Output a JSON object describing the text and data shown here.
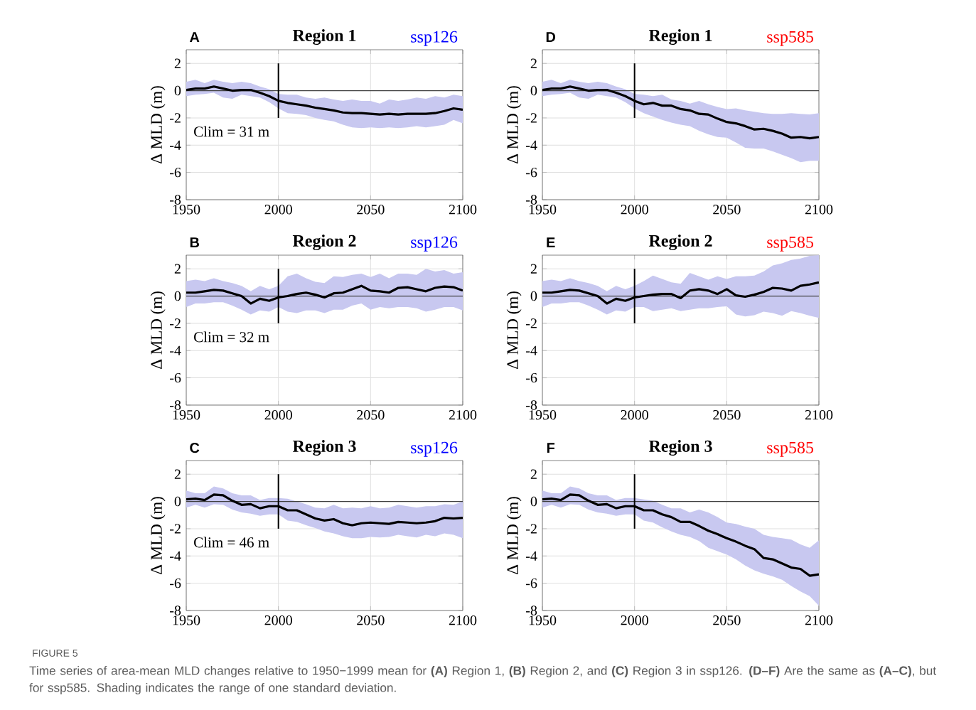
{
  "chart_data": [
    {
      "type": "line",
      "title": "Region 1",
      "subtitle": "ssp126",
      "ylabel": "Δ MLD (m)",
      "annotations": [
        "A",
        "Clim = 31 m"
      ],
      "xlim": [
        1950,
        2100
      ],
      "ylim": [
        -8,
        3
      ],
      "xticks": [
        1950,
        2000,
        2050,
        2100
      ],
      "yticks": [
        -8,
        -6,
        -4,
        -2,
        0,
        2
      ],
      "grid": true,
      "ref_lines": [
        {
          "axis": "y",
          "value": 0,
          "color": "#404040"
        },
        {
          "axis": "x",
          "value": 2000,
          "color": "#000000"
        }
      ],
      "x": [
        1950,
        1955,
        1960,
        1965,
        1970,
        1975,
        1980,
        1985,
        1990,
        1995,
        2000,
        2005,
        2010,
        2015,
        2020,
        2025,
        2030,
        2035,
        2040,
        2045,
        2050,
        2055,
        2060,
        2065,
        2070,
        2075,
        2080,
        2085,
        2090,
        2095,
        2100
      ],
      "series": [
        {
          "color": "#000000",
          "values": [
            0.05,
            0.15,
            0.15,
            0.3,
            0.15,
            0.0,
            0.05,
            0.05,
            -0.15,
            -0.4,
            -0.75,
            -0.9,
            -1.0,
            -1.1,
            -1.25,
            -1.35,
            -1.45,
            -1.6,
            -1.65,
            -1.65,
            -1.7,
            -1.75,
            -1.7,
            -1.75,
            -1.7,
            -1.7,
            -1.7,
            -1.65,
            -1.5,
            -1.3,
            -1.4
          ],
          "upper": [
            0.65,
            0.8,
            0.55,
            0.8,
            0.65,
            0.55,
            0.65,
            0.55,
            0.3,
            0.1,
            -0.25,
            -0.3,
            -0.3,
            -0.5,
            -0.6,
            -0.5,
            -0.65,
            -0.75,
            -0.65,
            -0.75,
            -0.75,
            -0.95,
            -0.65,
            -0.75,
            -0.65,
            -0.5,
            -0.6,
            -0.4,
            -0.5,
            -0.3,
            -0.4
          ],
          "lower": [
            -0.4,
            -0.3,
            -0.25,
            -0.15,
            -0.5,
            -0.6,
            -0.3,
            -0.4,
            -0.5,
            -0.85,
            -1.3,
            -1.65,
            -1.7,
            -1.8,
            -2.0,
            -2.15,
            -2.25,
            -2.5,
            -2.7,
            -2.75,
            -2.7,
            -2.75,
            -2.7,
            -2.75,
            -2.7,
            -2.6,
            -2.7,
            -2.6,
            -2.5,
            -2.15,
            -2.4
          ]
        }
      ]
    },
    {
      "type": "line",
      "title": "Region 1",
      "subtitle": "ssp585",
      "ylabel": "Δ MLD (m)",
      "annotations": [
        "D"
      ],
      "xlim": [
        1950,
        2100
      ],
      "ylim": [
        -8,
        3
      ],
      "xticks": [
        1950,
        2000,
        2050,
        2100
      ],
      "yticks": [
        -8,
        -6,
        -4,
        -2,
        0,
        2
      ],
      "grid": true,
      "ref_lines": [
        {
          "axis": "y",
          "value": 0,
          "color": "#404040"
        },
        {
          "axis": "x",
          "value": 2000,
          "color": "#000000"
        }
      ],
      "x": [
        1950,
        1955,
        1960,
        1965,
        1970,
        1975,
        1980,
        1985,
        1990,
        1995,
        2000,
        2005,
        2010,
        2015,
        2020,
        2025,
        2030,
        2035,
        2040,
        2045,
        2050,
        2055,
        2060,
        2065,
        2070,
        2075,
        2080,
        2085,
        2090,
        2095,
        2100
      ],
      "series": [
        {
          "color": "#000000",
          "values": [
            0.05,
            0.15,
            0.15,
            0.3,
            0.15,
            0.0,
            0.05,
            0.05,
            -0.15,
            -0.4,
            -0.75,
            -1.0,
            -0.9,
            -1.1,
            -1.1,
            -1.35,
            -1.45,
            -1.7,
            -1.75,
            -2.05,
            -2.3,
            -2.4,
            -2.6,
            -2.85,
            -2.8,
            -2.95,
            -3.15,
            -3.45,
            -3.4,
            -3.5,
            -3.4
          ],
          "upper": [
            0.65,
            0.8,
            0.55,
            0.8,
            0.65,
            0.55,
            0.65,
            0.55,
            0.3,
            0.1,
            -0.25,
            -0.3,
            -0.4,
            -0.3,
            -0.65,
            -0.75,
            -0.95,
            -0.75,
            -1.0,
            -1.2,
            -1.35,
            -1.3,
            -1.45,
            -1.55,
            -1.65,
            -1.7,
            -1.7,
            -1.65,
            -1.7,
            -1.75,
            -1.65
          ],
          "lower": [
            -0.4,
            -0.3,
            -0.25,
            -0.15,
            -0.5,
            -0.6,
            -0.3,
            -0.4,
            -0.5,
            -0.85,
            -1.3,
            -1.65,
            -1.9,
            -2.15,
            -2.35,
            -2.5,
            -2.6,
            -2.95,
            -3.2,
            -3.4,
            -3.45,
            -3.8,
            -4.2,
            -4.25,
            -4.25,
            -4.45,
            -4.7,
            -4.95,
            -5.25,
            -5.15,
            -5.15
          ]
        }
      ]
    },
    {
      "type": "line",
      "title": "Region 2",
      "subtitle": "ssp126",
      "ylabel": "Δ MLD (m)",
      "annotations": [
        "B",
        "Clim = 32 m"
      ],
      "xlim": [
        1950,
        2100
      ],
      "ylim": [
        -8,
        3
      ],
      "xticks": [
        1950,
        2000,
        2050,
        2100
      ],
      "yticks": [
        -8,
        -6,
        -4,
        -2,
        0,
        2
      ],
      "grid": true,
      "ref_lines": [
        {
          "axis": "y",
          "value": 0,
          "color": "#404040"
        },
        {
          "axis": "x",
          "value": 2000,
          "color": "#000000"
        }
      ],
      "x": [
        1950,
        1955,
        1960,
        1965,
        1970,
        1975,
        1980,
        1985,
        1990,
        1995,
        2000,
        2005,
        2010,
        2015,
        2020,
        2025,
        2030,
        2035,
        2040,
        2045,
        2050,
        2055,
        2060,
        2065,
        2070,
        2075,
        2080,
        2085,
        2090,
        2095,
        2100
      ],
      "series": [
        {
          "color": "#000000",
          "values": [
            0.25,
            0.25,
            0.35,
            0.45,
            0.4,
            0.2,
            0.0,
            -0.55,
            -0.2,
            -0.35,
            -0.1,
            0.0,
            0.15,
            0.25,
            0.1,
            -0.1,
            0.2,
            0.25,
            0.5,
            0.75,
            0.4,
            0.35,
            0.25,
            0.6,
            0.65,
            0.5,
            0.35,
            0.6,
            0.7,
            0.65,
            0.4
          ],
          "upper": [
            1.1,
            1.2,
            1.1,
            1.3,
            1.1,
            0.95,
            0.75,
            0.35,
            0.75,
            0.5,
            0.75,
            1.45,
            1.65,
            1.3,
            1.05,
            0.95,
            1.45,
            1.4,
            1.55,
            1.65,
            1.4,
            1.65,
            1.3,
            1.65,
            1.65,
            1.55,
            2.0,
            1.8,
            1.9,
            1.65,
            1.75
          ],
          "lower": [
            -0.8,
            -0.55,
            -0.55,
            -0.45,
            -0.45,
            -0.7,
            -1.0,
            -1.35,
            -1.05,
            -1.15,
            -0.8,
            -1.15,
            -1.25,
            -1.05,
            -1.05,
            -1.25,
            -1.0,
            -1.0,
            -0.7,
            -0.55,
            -1.0,
            -0.8,
            -0.9,
            -0.8,
            -0.8,
            -0.9,
            -1.15,
            -1.0,
            -0.8,
            -0.8,
            -1.05
          ]
        }
      ]
    },
    {
      "type": "line",
      "title": "Region 2",
      "subtitle": "ssp585",
      "ylabel": "Δ MLD (m)",
      "annotations": [
        "E"
      ],
      "xlim": [
        1950,
        2100
      ],
      "ylim": [
        -8,
        3
      ],
      "xticks": [
        1950,
        2000,
        2050,
        2100
      ],
      "yticks": [
        -8,
        -6,
        -4,
        -2,
        0,
        2
      ],
      "grid": true,
      "ref_lines": [
        {
          "axis": "y",
          "value": 0,
          "color": "#404040"
        },
        {
          "axis": "x",
          "value": 2000,
          "color": "#000000"
        }
      ],
      "x": [
        1950,
        1955,
        1960,
        1965,
        1970,
        1975,
        1980,
        1985,
        1990,
        1995,
        2000,
        2005,
        2010,
        2015,
        2020,
        2025,
        2030,
        2035,
        2040,
        2045,
        2050,
        2055,
        2060,
        2065,
        2070,
        2075,
        2080,
        2085,
        2090,
        2095,
        2100
      ],
      "series": [
        {
          "color": "#000000",
          "values": [
            0.25,
            0.25,
            0.35,
            0.45,
            0.4,
            0.2,
            0.0,
            -0.55,
            -0.2,
            -0.35,
            -0.1,
            0.0,
            0.1,
            0.15,
            0.15,
            -0.15,
            0.4,
            0.5,
            0.4,
            0.15,
            0.5,
            0.05,
            -0.05,
            0.1,
            0.3,
            0.6,
            0.55,
            0.4,
            0.75,
            0.85,
            1.0
          ],
          "upper": [
            1.1,
            1.2,
            1.1,
            1.3,
            1.1,
            0.95,
            0.75,
            0.35,
            0.75,
            0.5,
            0.75,
            1.1,
            1.5,
            1.25,
            1.0,
            0.9,
            1.7,
            1.45,
            1.2,
            1.45,
            1.25,
            1.45,
            1.45,
            1.5,
            1.8,
            2.25,
            2.4,
            2.65,
            2.75,
            2.95,
            3.0
          ],
          "lower": [
            -0.8,
            -0.55,
            -0.55,
            -0.45,
            -0.45,
            -0.7,
            -1.0,
            -1.35,
            -1.05,
            -1.15,
            -0.8,
            -0.8,
            -1.1,
            -1.0,
            -0.9,
            -1.1,
            -1.0,
            -0.9,
            -0.9,
            -0.8,
            -0.75,
            -1.35,
            -1.5,
            -1.4,
            -1.15,
            -1.25,
            -1.45,
            -1.1,
            -1.25,
            -1.45,
            -1.6
          ]
        }
      ]
    },
    {
      "type": "line",
      "title": "Region 3",
      "subtitle": "ssp126",
      "ylabel": "Δ MLD (m)",
      "annotations": [
        "C",
        "Clim = 46 m"
      ],
      "xlim": [
        1950,
        2100
      ],
      "ylim": [
        -8,
        3
      ],
      "xticks": [
        1950,
        2000,
        2050,
        2100
      ],
      "yticks": [
        -8,
        -6,
        -4,
        -2,
        0,
        2
      ],
      "grid": true,
      "ref_lines": [
        {
          "axis": "y",
          "value": 0,
          "color": "#404040"
        },
        {
          "axis": "x",
          "value": 2000,
          "color": "#000000"
        }
      ],
      "x": [
        1950,
        1955,
        1960,
        1965,
        1970,
        1975,
        1980,
        1985,
        1990,
        1995,
        2000,
        2005,
        2010,
        2015,
        2020,
        2025,
        2030,
        2035,
        2040,
        2045,
        2050,
        2055,
        2060,
        2065,
        2070,
        2075,
        2080,
        2085,
        2090,
        2095,
        2100
      ],
      "series": [
        {
          "color": "#000000",
          "values": [
            0.15,
            0.2,
            0.1,
            0.5,
            0.45,
            0.05,
            -0.25,
            -0.2,
            -0.5,
            -0.35,
            -0.35,
            -0.65,
            -0.65,
            -0.95,
            -1.25,
            -1.4,
            -1.3,
            -1.6,
            -1.75,
            -1.6,
            -1.55,
            -1.6,
            -1.65,
            -1.5,
            -1.55,
            -1.6,
            -1.55,
            -1.45,
            -1.2,
            -1.25,
            -1.2
          ],
          "upper": [
            0.8,
            0.6,
            0.6,
            1.1,
            0.95,
            0.6,
            0.45,
            0.45,
            0.1,
            0.25,
            0.25,
            0.2,
            0.0,
            -0.2,
            -0.45,
            -0.5,
            -0.25,
            -0.5,
            -0.45,
            -0.5,
            -0.35,
            -0.5,
            -0.45,
            -0.25,
            -0.35,
            -0.45,
            -0.35,
            -0.35,
            -0.2,
            -0.25,
            0.0
          ],
          "lower": [
            -0.45,
            -0.25,
            -0.45,
            -0.2,
            -0.25,
            -0.6,
            -0.8,
            -0.9,
            -1.05,
            -0.95,
            -0.95,
            -1.4,
            -1.5,
            -1.75,
            -1.95,
            -2.2,
            -2.35,
            -2.55,
            -2.7,
            -2.7,
            -2.6,
            -2.65,
            -2.6,
            -2.45,
            -2.55,
            -2.65,
            -2.45,
            -2.55,
            -2.35,
            -2.45,
            -2.7
          ]
        }
      ]
    },
    {
      "type": "line",
      "title": "Region 3",
      "subtitle": "ssp585",
      "ylabel": "Δ MLD (m)",
      "annotations": [
        "F"
      ],
      "xlim": [
        1950,
        2100
      ],
      "ylim": [
        -8,
        3
      ],
      "xticks": [
        1950,
        2000,
        2050,
        2100
      ],
      "yticks": [
        -8,
        -6,
        -4,
        -2,
        0,
        2
      ],
      "grid": true,
      "ref_lines": [
        {
          "axis": "y",
          "value": 0,
          "color": "#404040"
        },
        {
          "axis": "x",
          "value": 2000,
          "color": "#000000"
        }
      ],
      "x": [
        1950,
        1955,
        1960,
        1965,
        1970,
        1975,
        1980,
        1985,
        1990,
        1995,
        2000,
        2005,
        2010,
        2015,
        2020,
        2025,
        2030,
        2035,
        2040,
        2045,
        2050,
        2055,
        2060,
        2065,
        2070,
        2075,
        2080,
        2085,
        2090,
        2095,
        2100
      ],
      "series": [
        {
          "color": "#000000",
          "values": [
            0.15,
            0.2,
            0.1,
            0.5,
            0.45,
            0.05,
            -0.25,
            -0.2,
            -0.5,
            -0.35,
            -0.35,
            -0.65,
            -0.65,
            -0.95,
            -1.15,
            -1.5,
            -1.5,
            -1.8,
            -2.15,
            -2.4,
            -2.7,
            -2.95,
            -3.25,
            -3.5,
            -4.15,
            -4.25,
            -4.55,
            -4.85,
            -4.95,
            -5.45,
            -5.35
          ],
          "upper": [
            0.8,
            0.6,
            0.6,
            1.1,
            0.95,
            0.6,
            0.45,
            0.45,
            0.1,
            0.25,
            0.25,
            0.15,
            0.05,
            -0.25,
            -0.5,
            -0.5,
            -0.8,
            -0.6,
            -0.8,
            -1.15,
            -1.55,
            -1.65,
            -1.85,
            -2.0,
            -2.45,
            -2.6,
            -2.7,
            -2.8,
            -3.15,
            -3.4,
            -2.85
          ],
          "lower": [
            -0.45,
            -0.25,
            -0.45,
            -0.2,
            -0.25,
            -0.6,
            -0.8,
            -0.9,
            -1.05,
            -0.95,
            -0.95,
            -1.4,
            -1.55,
            -1.9,
            -2.2,
            -2.45,
            -2.6,
            -2.9,
            -3.4,
            -3.65,
            -3.9,
            -4.25,
            -4.7,
            -5.05,
            -5.3,
            -5.5,
            -5.75,
            -6.2,
            -6.6,
            -6.95,
            -7.65
          ]
        }
      ]
    },
    {
      "type": "other",
      "title": "FIGURE 5",
      "annotations": [
        "Time series of area-mean MLD changes relative to 1950−1999 mean for **(A)** Region 1, **(B)** Region 2, and **(C)** Region 3 in ssp126. **(D–F)** Are the same as **(A–C)**, but for ssp585. Shading indicates the range of one standard deviation."
      ]
    }
  ]
}
